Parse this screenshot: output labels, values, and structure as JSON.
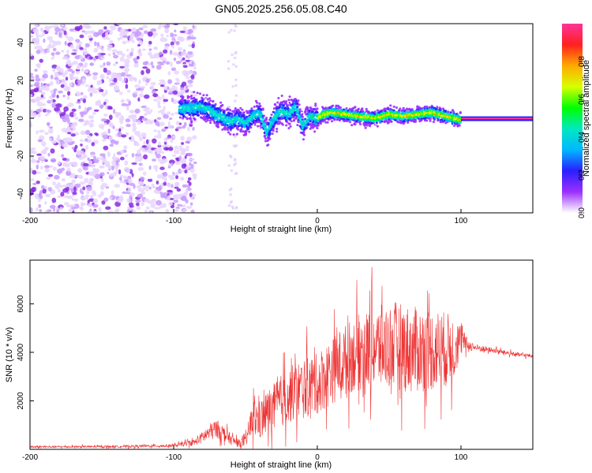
{
  "figure_title": "GN05.2025.256.05.08.C40",
  "chart_data": [
    {
      "type": "heatmap",
      "title": "GN05.2025.256.05.08.C40",
      "xlabel": "Height of straight line (km)",
      "ylabel": "Frequency (Hz)",
      "xlim": [
        -200,
        150
      ],
      "ylim": [
        -50,
        50
      ],
      "x_ticks": [
        -200,
        -100,
        0,
        100
      ],
      "y_ticks": [
        -40,
        -20,
        0,
        20,
        40
      ],
      "colorbar": {
        "label": "Normalized spectral amplitude",
        "range": [
          0,
          1
        ],
        "ticks": [
          "0.0",
          "0.2",
          "0.4",
          "0.6",
          "0.8"
        ],
        "tick_values": [
          0.0,
          0.2,
          0.4,
          0.6,
          0.8
        ],
        "colormap": [
          "#ffffff",
          "#9b30ff",
          "#2a1fff",
          "#00b8ff",
          "#00e8c0",
          "#00ff00",
          "#d8ff00",
          "#ffaa00",
          "#ff2020",
          "#ff3399"
        ]
      },
      "noise_region_km": [
        -200,
        -85
      ],
      "signal_band_hz": [
        -10,
        10
      ],
      "ridge_profile": {
        "x_km": [
          -95,
          -80,
          -70,
          -60,
          -55,
          -50,
          -45,
          -40,
          -35,
          -30,
          -25,
          -20,
          -15,
          -10,
          -5,
          0,
          5,
          10,
          20,
          30,
          40,
          50,
          60,
          70,
          80,
          90,
          95,
          100,
          150
        ],
        "freq_hz": [
          5,
          6,
          2,
          -2,
          0,
          -3,
          1,
          3,
          -8,
          0,
          4,
          2,
          6,
          -4,
          1,
          0,
          2,
          3,
          2,
          1,
          0,
          2,
          1,
          2,
          3,
          1,
          0,
          -1,
          -1
        ]
      }
    },
    {
      "type": "line",
      "xlabel": "Height of straight line (km)",
      "ylabel": "SNR (10 * v/v)",
      "xlim": [
        -200,
        150
      ],
      "ylim": [
        0,
        7800
      ],
      "x_ticks": [
        -200,
        -100,
        0,
        100
      ],
      "y_ticks": [
        2000,
        4000,
        6000
      ],
      "color": "#ee3333",
      "envelope": {
        "x": [
          -200,
          -150,
          -100,
          -85,
          -75,
          -70,
          -65,
          -60,
          -55,
          -50,
          -45,
          -40,
          -35,
          -30,
          -25,
          -20,
          -15,
          -10,
          -5,
          0,
          5,
          10,
          15,
          20,
          25,
          30,
          35,
          40,
          45,
          50,
          55,
          60,
          65,
          70,
          75,
          80,
          85,
          90,
          95,
          100,
          105,
          110,
          120,
          130,
          140,
          150
        ],
        "mean": [
          100,
          110,
          150,
          300,
          700,
          850,
          650,
          400,
          250,
          300,
          1300,
          1200,
          1500,
          1700,
          2000,
          2200,
          2400,
          2500,
          2600,
          2700,
          3000,
          3200,
          3500,
          3700,
          3900,
          4000,
          4100,
          4200,
          4200,
          4250,
          4300,
          4200,
          4100,
          4100,
          4150,
          4100,
          4150,
          4100,
          4200,
          4500,
          4300,
          4200,
          4100,
          4000,
          3900,
          3850
        ],
        "spread": [
          80,
          80,
          110,
          250,
          650,
          700,
          550,
          400,
          300,
          400,
          1400,
          1500,
          1700,
          1900,
          2000,
          2100,
          2200,
          2300,
          2300,
          2300,
          2500,
          2500,
          2600,
          2700,
          2800,
          2900,
          3000,
          3100,
          3200,
          3200,
          3300,
          3300,
          3300,
          3200,
          3200,
          3100,
          3000,
          2800,
          2500,
          1200,
          400,
          300,
          200,
          180,
          150,
          150
        ]
      }
    }
  ]
}
